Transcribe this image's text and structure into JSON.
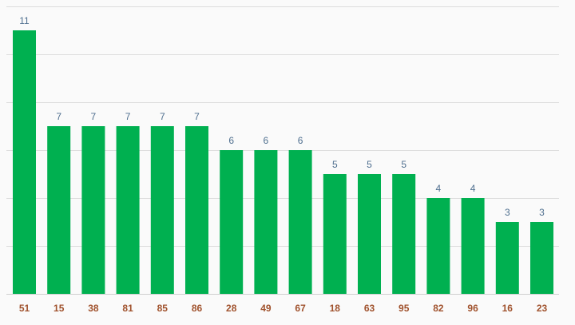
{
  "colors": {
    "bar": "#00b050",
    "data_label": "#4f6f8f",
    "tick_label": "#a0522d",
    "grid": "#dddddd",
    "background": "#fafafa"
  },
  "chart_data": {
    "type": "bar",
    "categories": [
      "51",
      "15",
      "38",
      "81",
      "85",
      "86",
      "28",
      "49",
      "67",
      "18",
      "63",
      "95",
      "82",
      "96",
      "16",
      "23"
    ],
    "values": [
      11,
      7,
      7,
      7,
      7,
      7,
      6,
      6,
      6,
      5,
      5,
      5,
      4,
      4,
      3,
      3
    ],
    "title": "",
    "xlabel": "",
    "ylabel": "",
    "ylim": [
      0,
      12
    ],
    "grid": true,
    "legend": "none",
    "data_labels": true
  }
}
